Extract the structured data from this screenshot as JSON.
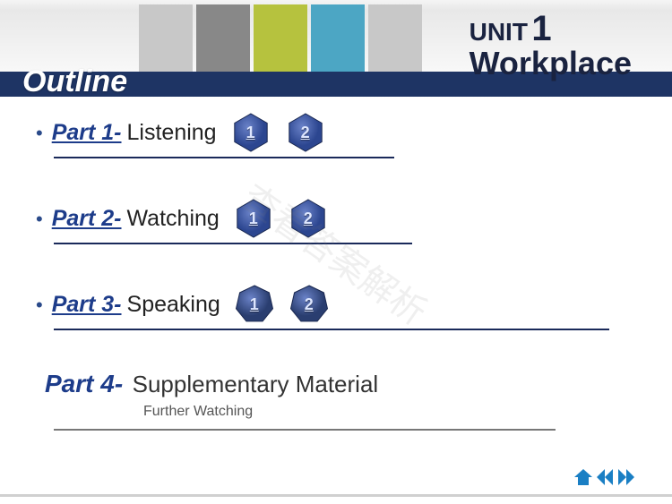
{
  "header": {
    "unit_label": "UNIT",
    "unit_number": "1",
    "title": "Workplace",
    "title_color": "#1a2340"
  },
  "outline_title": "Outline",
  "blue_bar_color": "#1e3464",
  "color_blocks": [
    "#c8c8c8",
    "#888888",
    "#b6c23e",
    "#4ca6c4",
    "#c8c8c8"
  ],
  "parts": [
    {
      "label": "Part 1-",
      "label_color": "#1d3c8a",
      "name": "Listening",
      "shape_sides": 6,
      "shape_color": "#2c4690",
      "nums": [
        "1",
        "2"
      ],
      "underline_width": 380
    },
    {
      "label": "Part 2-",
      "label_color": "#1d3c8a",
      "name": "Watching",
      "shape_sides": 6,
      "shape_color": "#3a4f78",
      "nums": [
        "1",
        "2"
      ],
      "underline_width": 400
    },
    {
      "label": "Part 3-",
      "label_color": "#1d3c8a",
      "name": "Speaking",
      "shape_sides": 7,
      "shape_color": "#2a3e70",
      "nums": [
        "1",
        "2"
      ],
      "underline_width": 620
    }
  ],
  "part4": {
    "label": "Part 4-",
    "label_color": "#1d3c8a",
    "name": "Supplementary Material",
    "sub": "Further Watching"
  },
  "nav": {
    "home": "⌂",
    "prev": "◀",
    "next": "▶",
    "color": "#1a7fc4"
  },
  "watermark_text": "查看答案解析"
}
